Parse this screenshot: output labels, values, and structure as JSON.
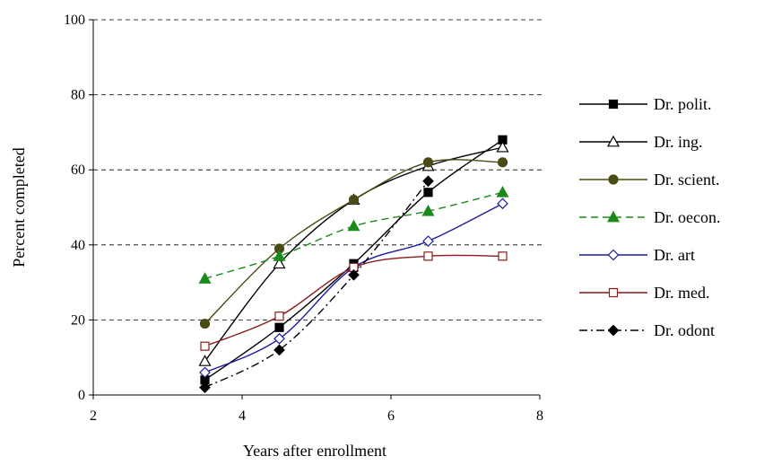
{
  "chart_data": {
    "type": "line",
    "title": "",
    "xlabel": "Years after enrollment",
    "ylabel": "Percent completed",
    "xlim": [
      2,
      8
    ],
    "ylim": [
      0,
      100
    ],
    "xticks": [
      2,
      4,
      6,
      8
    ],
    "yticks": [
      0,
      20,
      40,
      60,
      80,
      100
    ],
    "grid": "horizontal dashed",
    "legend_position": "right",
    "series": [
      {
        "name": "Dr. polit.",
        "color": "#000000",
        "dash": "solid",
        "marker": "square-filled",
        "x": [
          3.5,
          4.5,
          5.5,
          6.5,
          7.5
        ],
        "values": [
          4,
          18,
          35,
          54,
          68
        ]
      },
      {
        "name": "Dr. ing.",
        "color": "#000000",
        "dash": "solid",
        "marker": "triangle-open",
        "x": [
          3.5,
          4.5,
          5.5,
          6.5,
          7.5
        ],
        "values": [
          9,
          35,
          52,
          61,
          66
        ]
      },
      {
        "name": "Dr. scient.",
        "color": "#4a4a14",
        "dash": "solid",
        "marker": "circle-filled",
        "x": [
          3.5,
          4.5,
          5.5,
          6.5,
          7.5
        ],
        "values": [
          19,
          39,
          52,
          62,
          62
        ]
      },
      {
        "name": "Dr. oecon.",
        "color": "#1a8a1a",
        "dash": "dashed",
        "marker": "triangle-filled",
        "x": [
          3.5,
          4.5,
          5.5,
          6.5,
          7.5
        ],
        "values": [
          31,
          37,
          45,
          49,
          54
        ]
      },
      {
        "name": "Dr. art",
        "color": "#1a1aa0",
        "dash": "solid",
        "marker": "diamond-open",
        "x": [
          3.5,
          4.5,
          5.5,
          6.5,
          7.5
        ],
        "values": [
          6,
          15,
          34,
          41,
          51
        ]
      },
      {
        "name": "Dr. med.",
        "color": "#8b1a1a",
        "dash": "solid",
        "marker": "square-open",
        "x": [
          3.5,
          4.5,
          5.5,
          6.5,
          7.5
        ],
        "values": [
          13,
          21,
          34,
          37,
          37
        ]
      },
      {
        "name": "Dr. odont",
        "color": "#000000",
        "dash": "dashdot",
        "marker": "diamond-filled",
        "x": [
          3.5,
          4.5,
          5.5,
          6.5
        ],
        "values": [
          2,
          12,
          32,
          57
        ]
      }
    ]
  }
}
